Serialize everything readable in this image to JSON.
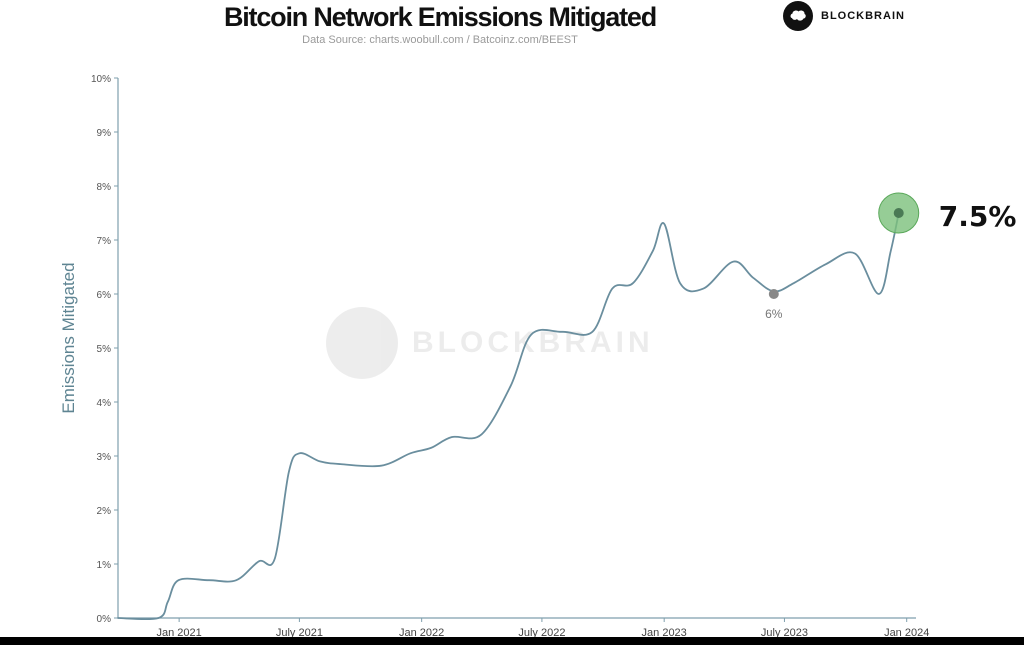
{
  "header": {
    "title": "Bitcoin Network Emissions Mitigated",
    "subtitle": "Data Source: charts.woobull.com / Batcoinz.com/BEEST"
  },
  "brand": {
    "name": "BLOCKBRAIN",
    "icon": "brain-icon"
  },
  "watermark": {
    "text": "BLOCKBRAIN"
  },
  "chart_data": {
    "type": "line",
    "title": "Bitcoin Network Emissions Mitigated",
    "xlabel": "",
    "ylabel": "Emissions Mitigated",
    "x_ticks": [
      "Jan 2021",
      "July 2021",
      "Jan 2022",
      "July 2022",
      "Jan 2023",
      "July 2023",
      "Jan 2024"
    ],
    "y_ticks": [
      "0%",
      "1%",
      "2%",
      "3%",
      "4%",
      "5%",
      "6%",
      "7%",
      "8%",
      "9%",
      "10%"
    ],
    "ylim": [
      0,
      10
    ],
    "xlim": [
      "2020-10-01",
      "2024-01-15"
    ],
    "grid": false,
    "line_color": "#6a8e9e",
    "series": [
      {
        "points": [
          [
            "2020-10-01",
            0.0
          ],
          [
            "2020-12-01",
            0.0
          ],
          [
            "2020-12-15",
            0.3
          ],
          [
            "2020-12-31",
            0.7
          ],
          [
            "2021-02-15",
            0.7
          ],
          [
            "2021-03-28",
            0.7
          ],
          [
            "2021-05-01",
            1.05
          ],
          [
            "2021-05-25",
            1.1
          ],
          [
            "2021-06-15",
            2.7
          ],
          [
            "2021-07-01",
            3.05
          ],
          [
            "2021-08-01",
            2.9
          ],
          [
            "2021-09-01",
            2.85
          ],
          [
            "2021-11-01",
            2.82
          ],
          [
            "2021-12-15",
            3.05
          ],
          [
            "2022-01-15",
            3.15
          ],
          [
            "2022-02-15",
            3.35
          ],
          [
            "2022-04-01",
            3.4
          ],
          [
            "2022-05-15",
            4.3
          ],
          [
            "2022-06-15",
            5.25
          ],
          [
            "2022-08-01",
            5.3
          ],
          [
            "2022-09-15",
            5.3
          ],
          [
            "2022-10-15",
            6.1
          ],
          [
            "2022-11-15",
            6.2
          ],
          [
            "2022-12-15",
            6.8
          ],
          [
            "2023-01-01",
            7.3
          ],
          [
            "2023-01-25",
            6.2
          ],
          [
            "2023-03-01",
            6.1
          ],
          [
            "2023-04-15",
            6.6
          ],
          [
            "2023-05-15",
            6.3
          ],
          [
            "2023-06-15",
            6.05
          ],
          [
            "2023-07-15",
            6.2
          ],
          [
            "2023-09-01",
            6.55
          ],
          [
            "2023-10-15",
            6.75
          ],
          [
            "2023-11-20",
            6.0
          ],
          [
            "2023-12-08",
            6.8
          ],
          [
            "2023-12-20",
            7.5
          ]
        ]
      }
    ],
    "annotations": [
      {
        "date": "2023-06-15",
        "value": 6.0,
        "label": "6%",
        "color": "#888888"
      },
      {
        "date": "2023-12-20",
        "value": 7.5,
        "label": "7.5%",
        "color": "#3a8f3a",
        "halo": "#7cc07c"
      }
    ]
  }
}
